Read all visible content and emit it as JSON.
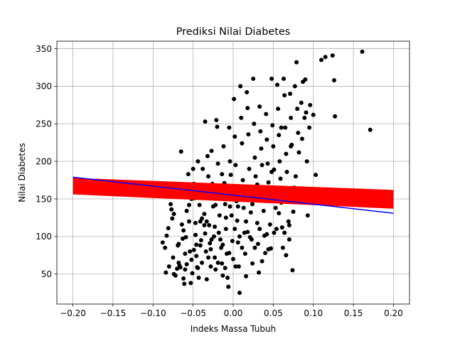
{
  "chart_data": {
    "type": "scatter",
    "title": "Prediksi Nilai Diabetes",
    "xlabel": "Indeks Massa Tubuh",
    "ylabel": "Nilai Diabetes",
    "xlim": [
      -0.22,
      0.22
    ],
    "ylim": [
      10,
      360
    ],
    "grid": true,
    "x_ticks": [
      -0.2,
      -0.15,
      -0.1,
      -0.05,
      0.0,
      0.05,
      0.1,
      0.15,
      0.2
    ],
    "x_tick_labels": [
      "−0.20",
      "−0.15",
      "−0.10",
      "−0.05",
      "0.00",
      "0.05",
      "0.10",
      "0.15",
      "0.20"
    ],
    "y_ticks": [
      50,
      100,
      150,
      200,
      250,
      300,
      350
    ],
    "y_tick_labels": [
      "50",
      "100",
      "150",
      "200",
      "250",
      "300",
      "350"
    ],
    "colors": {
      "points": "#000000",
      "band": "#ff0000",
      "line": "#0000ff",
      "grid": "#b0b0b0"
    },
    "band": {
      "x": [
        -0.2,
        0.2
      ],
      "y_upper": [
        178,
        162
      ],
      "y_lower": [
        156,
        137
      ]
    },
    "line": {
      "x": [
        -0.2,
        0.2
      ],
      "y": [
        179,
        131
      ]
    },
    "points": [
      [
        -0.088,
        92
      ],
      [
        -0.085,
        85
      ],
      [
        -0.084,
        52
      ],
      [
        -0.083,
        101
      ],
      [
        -0.081,
        111
      ],
      [
        -0.08,
        60
      ],
      [
        -0.078,
        143
      ],
      [
        -0.077,
        136
      ],
      [
        -0.076,
        124
      ],
      [
        -0.075,
        72
      ],
      [
        -0.074,
        50
      ],
      [
        -0.072,
        48
      ],
      [
        -0.07,
        57
      ],
      [
        -0.069,
        88
      ],
      [
        -0.068,
        65
      ],
      [
        -0.067,
        61
      ],
      [
        -0.066,
        59
      ],
      [
        -0.065,
        213
      ],
      [
        -0.065,
        168
      ],
      [
        -0.064,
        116
      ],
      [
        -0.063,
        97
      ],
      [
        -0.062,
        44
      ],
      [
        -0.061,
        37
      ],
      [
        -0.06,
        56
      ],
      [
        -0.059,
        99
      ],
      [
        -0.058,
        63
      ],
      [
        -0.056,
        183
      ],
      [
        -0.055,
        142
      ],
      [
        -0.054,
        80
      ],
      [
        -0.053,
        38
      ],
      [
        -0.052,
        69
      ],
      [
        -0.051,
        51
      ],
      [
        -0.05,
        190
      ],
      [
        -0.049,
        170
      ],
      [
        -0.048,
        151
      ],
      [
        -0.047,
        118
      ],
      [
        -0.046,
        89
      ],
      [
        -0.046,
        74
      ],
      [
        -0.045,
        59
      ],
      [
        -0.044,
        200
      ],
      [
        -0.043,
        45
      ],
      [
        -0.042,
        142
      ],
      [
        -0.041,
        120
      ],
      [
        -0.04,
        95
      ],
      [
        -0.039,
        65
      ],
      [
        -0.038,
        190
      ],
      [
        -0.037,
        160
      ],
      [
        -0.036,
        130
      ],
      [
        -0.035,
        253
      ],
      [
        -0.035,
        104
      ],
      [
        -0.034,
        80
      ],
      [
        -0.033,
        43
      ],
      [
        -0.032,
        207
      ],
      [
        -0.031,
        180
      ],
      [
        -0.03,
        115
      ],
      [
        -0.029,
        91
      ],
      [
        -0.028,
        60
      ],
      [
        -0.027,
        214
      ],
      [
        -0.026,
        170
      ],
      [
        -0.025,
        140
      ],
      [
        -0.024,
        100
      ],
      [
        -0.023,
        72
      ],
      [
        -0.022,
        56
      ],
      [
        -0.021,
        255
      ],
      [
        -0.02,
        246
      ],
      [
        -0.019,
        197
      ],
      [
        -0.018,
        159
      ],
      [
        -0.017,
        128
      ],
      [
        -0.016,
        96
      ],
      [
        -0.015,
        85
      ],
      [
        -0.014,
        64
      ],
      [
        -0.013,
        48
      ],
      [
        -0.012,
        220
      ],
      [
        -0.011,
        171
      ],
      [
        -0.01,
        143
      ],
      [
        -0.009,
        110
      ],
      [
        -0.008,
        77
      ],
      [
        -0.007,
        45
      ],
      [
        -0.006,
        33
      ],
      [
        -0.005,
        245
      ],
      [
        -0.004,
        200
      ],
      [
        -0.003,
        182
      ],
      [
        -0.002,
        128
      ],
      [
        -0.001,
        94
      ],
      [
        0.0,
        70
      ],
      [
        0.001,
        283
      ],
      [
        0.002,
        233
      ],
      [
        0.003,
        195
      ],
      [
        0.004,
        147
      ],
      [
        0.005,
        121
      ],
      [
        0.006,
        92
      ],
      [
        0.007,
        60
      ],
      [
        0.008,
        25
      ],
      [
        0.009,
        300
      ],
      [
        0.01,
        258
      ],
      [
        0.011,
        224
      ],
      [
        0.012,
        175
      ],
      [
        0.013,
        138
      ],
      [
        0.014,
        105
      ],
      [
        0.015,
        77
      ],
      [
        0.016,
        47
      ],
      [
        0.017,
        292
      ],
      [
        0.018,
        271
      ],
      [
        0.019,
        236
      ],
      [
        0.02,
        190
      ],
      [
        0.021,
        163
      ],
      [
        0.022,
        132
      ],
      [
        0.023,
        96
      ],
      [
        0.024,
        64
      ],
      [
        0.025,
        310
      ],
      [
        0.026,
        250
      ],
      [
        0.027,
        205
      ],
      [
        0.028,
        180
      ],
      [
        0.029,
        150
      ],
      [
        0.03,
        118
      ],
      [
        0.031,
        90
      ],
      [
        0.032,
        52
      ],
      [
        0.033,
        273
      ],
      [
        0.034,
        240
      ],
      [
        0.035,
        217
      ],
      [
        0.036,
        195
      ],
      [
        0.037,
        165
      ],
      [
        0.038,
        134
      ],
      [
        0.039,
        101
      ],
      [
        0.04,
        78
      ],
      [
        0.041,
        263
      ],
      [
        0.042,
        229
      ],
      [
        0.043,
        197
      ],
      [
        0.044,
        172
      ],
      [
        0.045,
        148
      ],
      [
        0.046,
        116
      ],
      [
        0.047,
        84
      ],
      [
        0.048,
        310
      ],
      [
        0.049,
        248
      ],
      [
        0.05,
        220
      ],
      [
        0.051,
        189
      ],
      [
        0.052,
        160
      ],
      [
        0.053,
        138
      ],
      [
        0.055,
        302
      ],
      [
        0.056,
        270
      ],
      [
        0.057,
        235
      ],
      [
        0.058,
        200
      ],
      [
        0.059,
        177
      ],
      [
        0.06,
        145
      ],
      [
        0.061,
        112
      ],
      [
        0.062,
        85
      ],
      [
        0.063,
        310
      ],
      [
        0.064,
        288
      ],
      [
        0.065,
        245
      ],
      [
        0.066,
        210
      ],
      [
        0.067,
        186
      ],
      [
        0.068,
        150
      ],
      [
        0.069,
        120
      ],
      [
        0.07,
        96
      ],
      [
        0.071,
        290
      ],
      [
        0.072,
        258
      ],
      [
        0.073,
        222
      ],
      [
        0.074,
        55
      ],
      [
        0.075,
        133
      ],
      [
        0.077,
        300
      ],
      [
        0.079,
        332
      ],
      [
        0.08,
        270
      ],
      [
        0.081,
        238
      ],
      [
        0.082,
        212
      ],
      [
        0.084,
        155
      ],
      [
        0.085,
        278
      ],
      [
        0.087,
        306
      ],
      [
        0.089,
        258
      ],
      [
        0.09,
        309
      ],
      [
        0.091,
        265
      ],
      [
        0.092,
        200
      ],
      [
        0.093,
        128
      ],
      [
        0.095,
        245
      ],
      [
        0.096,
        275
      ],
      [
        0.1,
        262
      ],
      [
        0.103,
        182
      ],
      [
        0.11,
        335
      ],
      [
        0.115,
        339
      ],
      [
        0.124,
        341
      ],
      [
        0.126,
        308
      ],
      [
        0.127,
        260
      ],
      [
        0.161,
        346
      ],
      [
        0.171,
        242
      ],
      [
        -0.062,
        108
      ],
      [
        -0.058,
        134
      ],
      [
        -0.052,
        150
      ],
      [
        -0.047,
        102
      ],
      [
        -0.041,
        88
      ],
      [
        -0.036,
        115
      ],
      [
        -0.031,
        72
      ],
      [
        -0.027,
        96
      ],
      [
        -0.022,
        142
      ],
      [
        -0.018,
        105
      ],
      [
        -0.013,
        89
      ],
      [
        -0.009,
        125
      ],
      [
        -0.004,
        140
      ],
      [
        0.002,
        110
      ],
      [
        0.006,
        140
      ],
      [
        0.011,
        85
      ],
      [
        0.016,
        120
      ],
      [
        0.021,
        99
      ],
      [
        0.027,
        85
      ],
      [
        0.033,
        110
      ],
      [
        0.038,
        150
      ],
      [
        0.044,
        83
      ],
      [
        0.051,
        105
      ],
      [
        0.057,
        131
      ],
      [
        0.064,
        105
      ],
      [
        0.07,
        115
      ],
      [
        0.076,
        165
      ],
      [
        -0.074,
        130
      ],
      [
        -0.068,
        90
      ],
      [
        -0.06,
        77
      ],
      [
        -0.055,
        120
      ],
      [
        -0.049,
        82
      ],
      [
        -0.044,
        58
      ],
      [
        -0.039,
        124
      ],
      [
        -0.033,
        120
      ],
      [
        -0.028,
        83
      ],
      [
        -0.023,
        113
      ],
      [
        -0.019,
        65
      ],
      [
        -0.014,
        183
      ],
      [
        -0.01,
        58
      ],
      [
        -0.005,
        78
      ],
      [
        0.003,
        60
      ],
      [
        0.008,
        100
      ],
      [
        0.013,
        150
      ],
      [
        0.018,
        106
      ],
      [
        0.024,
        143
      ],
      [
        0.03,
        169
      ],
      [
        0.036,
        67
      ],
      [
        0.042,
        103
      ],
      [
        0.048,
        186
      ],
      [
        0.054,
        110
      ],
      [
        0.06,
        245
      ],
      [
        0.066,
        75
      ],
      [
        0.072,
        220
      ],
      [
        0.078,
        180
      ],
      [
        0.086,
        230
      ],
      [
        0.094,
        145
      ]
    ]
  }
}
